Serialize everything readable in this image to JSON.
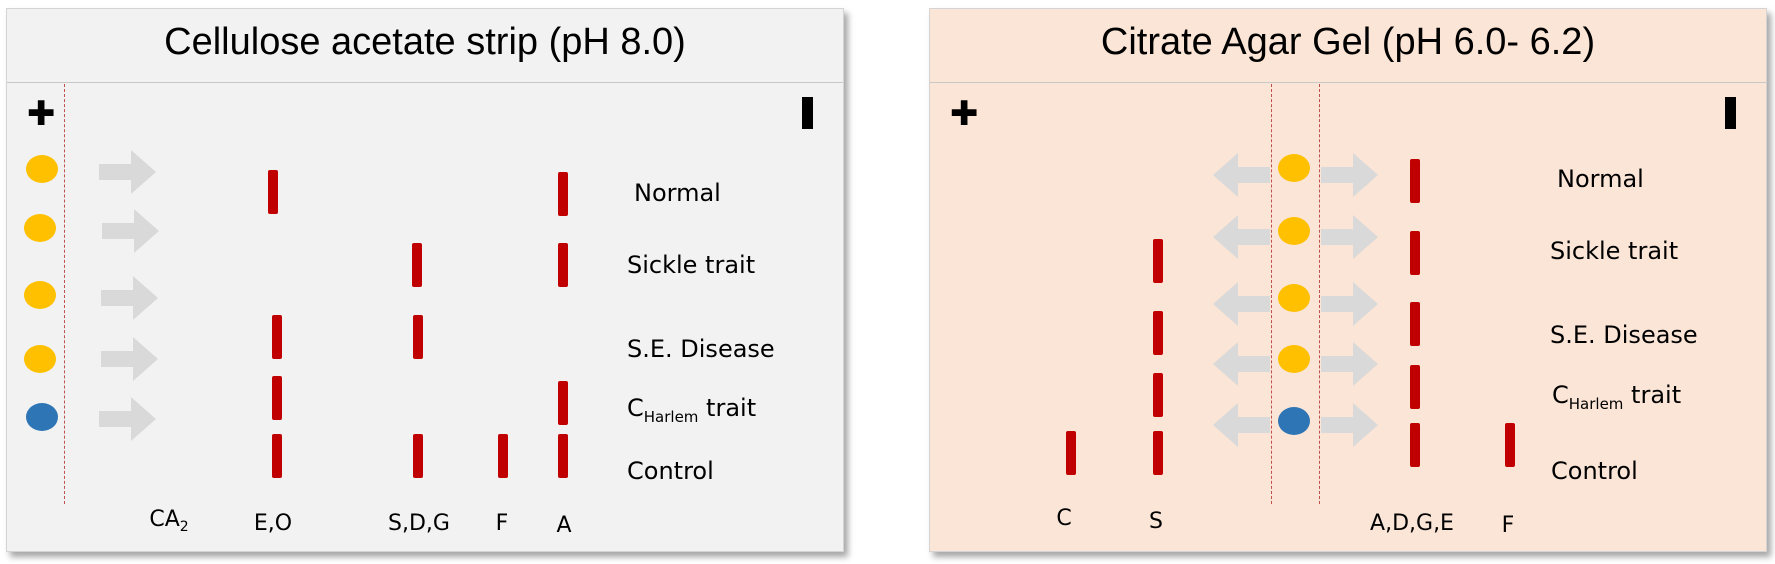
{
  "colors": {
    "normal_sample": "#ffc000",
    "control_sample": "#2e75b6",
    "band": "#c00000",
    "arrow": "#d9d9d9"
  },
  "left_panel": {
    "title": "Cellulose acetate strip (pH 8.0)",
    "plus_symbol": "✚",
    "rows": [
      {
        "label": "Normal",
        "sample": "normal-sample"
      },
      {
        "label": "Sickle trait",
        "sample": "normal-sample"
      },
      {
        "label": "S.E. Disease",
        "sample": "normal-sample"
      },
      {
        "label_main": "C",
        "label_sub": "Harlem",
        "label_tail": " trait",
        "sample": "normal-sample"
      },
      {
        "label": "Control",
        "sample": "control-sample"
      }
    ],
    "axis": {
      "ca_main": "CA",
      "ca_sub": "2",
      "eo": "E,O",
      "sdg": "S,D,G",
      "f": "F",
      "a": "A"
    }
  },
  "right_panel": {
    "title": "Citrate Agar Gel (pH 6.0- 6.2)",
    "plus_symbol": "✚",
    "rows": [
      {
        "label": "Normal",
        "sample": "normal-sample"
      },
      {
        "label": "Sickle trait",
        "sample": "normal-sample"
      },
      {
        "label": "S.E. Disease",
        "sample": "normal-sample"
      },
      {
        "label_main": "C",
        "label_sub": "Harlem",
        "label_tail": " trait",
        "sample": "normal-sample"
      },
      {
        "label": "Control",
        "sample": "control-sample"
      }
    ],
    "axis": {
      "c": "C",
      "s": "S",
      "adge": "A,D,G,E",
      "f": "F"
    }
  }
}
